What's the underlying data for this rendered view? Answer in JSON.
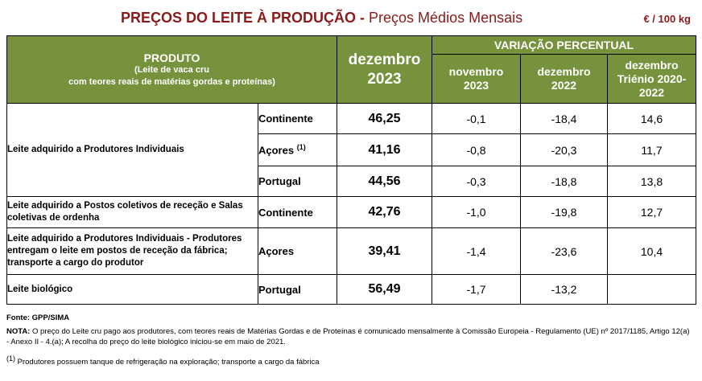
{
  "title": {
    "main": "PREÇOS DO LEITE À PRODUÇÃO",
    "separator": " - ",
    "sub": "Preços Médios Mensais",
    "unit": "€ / 100 kg"
  },
  "header": {
    "produto": "PRODUTO",
    "produto_sub1": "(Leite de vaca cru",
    "produto_sub2": "com teores reais de matérias gordas e proteínas)",
    "dez_line1": "dezembro",
    "dez_line2": "2023",
    "variacao": "VARIAÇÃO PERCENTUAL",
    "nov_line1": "novembro",
    "nov_line2": "2023",
    "dez22_line1": "dezembro",
    "dez22_line2": "2022",
    "trienio_line1": "dezembro",
    "trienio_line2": "Triénio 2020-",
    "trienio_line3": "2022"
  },
  "rows": [
    {
      "produto": "Leite adquirido a Produtores Individuais",
      "regiao": "Continente",
      "preco": "46,25",
      "nov2023": "-0,1",
      "dez2022": "-18,4",
      "trienio": "14,6"
    },
    {
      "regiao": "Açores",
      "regiao_sup": "(1)",
      "preco": "41,16",
      "nov2023": "-0,8",
      "dez2022": "-20,3",
      "trienio": "11,7"
    },
    {
      "regiao": "Portugal",
      "preco": "44,56",
      "nov2023": "-0,3",
      "dez2022": "-18,8",
      "trienio": "13,8"
    },
    {
      "produto": "Leite adquirido a Postos coletivos de receção e Salas coletivas de ordenha",
      "regiao": "Continente",
      "preco": "42,76",
      "nov2023": "-1,0",
      "dez2022": "-19,8",
      "trienio": "12,7"
    },
    {
      "produto": "Leite adquirido a Produtores Individuais - Produtores entregam o leite em postos de receção da fábrica; transporte a cargo do produtor",
      "regiao": "Açores",
      "preco": "39,41",
      "nov2023": "-1,4",
      "dez2022": "-23,6",
      "trienio": "10,4"
    },
    {
      "produto": "Leite biológico",
      "regiao": "Portugal",
      "preco": "56,49",
      "nov2023": "-1,7",
      "dez2022": "-13,2",
      "trienio": ""
    }
  ],
  "footer": {
    "fonte": "Fonte: GPP/SIMA",
    "nota_label": "NOTA:",
    "nota_text": " O preço do Leite cru pago aos produtores, com teores reais de Matérias Gordas e de Proteínas é comunicado mensalmente à Comissão Europeia - Regulamento (UE) nº 2017/1185, Artigo 12(a) - Anexo II - 4.(a); A recolha do preço do leite biológico iniciou-se em maio de 2021.",
    "nota1_sup": "(1)",
    "nota1_text": " Produtores possuem tanque de refrigeração na exploração; transporte a cargo da fábrica"
  },
  "colors": {
    "title": "#8b1a1a",
    "header_bg": "#76923c",
    "header_text": "#ffffff"
  }
}
